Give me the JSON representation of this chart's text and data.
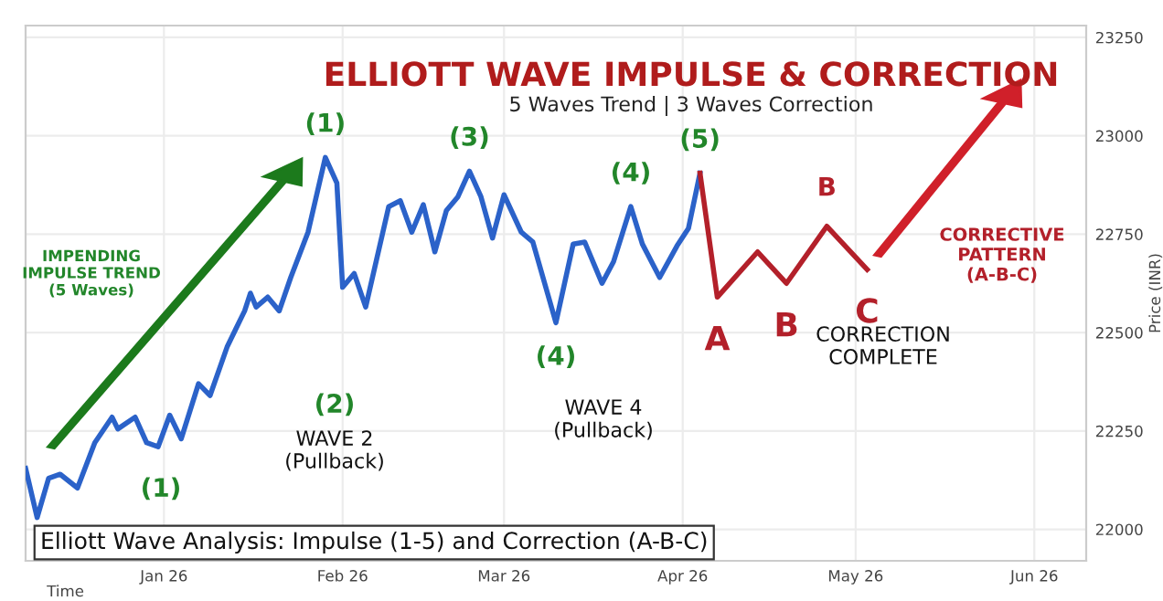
{
  "chart_data": {
    "type": "line",
    "title": "ELLIOTT WAVE IMPULSE & CORRECTION",
    "subtitle": "5 Waves Trend | 3 Waves Correction",
    "xlabel": "Time",
    "ylabel": "Price (INR)",
    "series": [
      {
        "color": "#2b62c9",
        "x": [
          "2025-12-08",
          "2025-12-10",
          "2025-12-12",
          "2025-12-14",
          "2025-12-17",
          "2025-12-20",
          "2025-12-23",
          "2025-12-24",
          "2025-12-27",
          "2025-12-29",
          "2025-12-31",
          "2026-01-02",
          "2026-01-04",
          "2026-01-07",
          "2026-01-09",
          "2026-01-12",
          "2026-01-13",
          "2026-01-15",
          "2026-01-16",
          "2026-01-17",
          "2026-01-19",
          "2026-01-21",
          "2026-01-23",
          "2026-01-26",
          "2026-01-29",
          "2026-01-31",
          "2026-02-01",
          "2026-02-03",
          "2026-02-05",
          "2026-02-09",
          "2026-02-11",
          "2026-02-13",
          "2026-02-15",
          "2026-02-17",
          "2026-02-19",
          "2026-02-21",
          "2026-02-23",
          "2026-02-25",
          "2026-02-27",
          "2026-03-01",
          "2026-03-04",
          "2026-03-06",
          "2026-03-10",
          "2026-03-13",
          "2026-03-15",
          "2026-03-17",
          "2026-03-18",
          "2026-03-20",
          "2026-03-23",
          "2026-03-25",
          "2026-03-28",
          "2026-03-31",
          "2026-04-02",
          "2026-04-04"
        ],
        "values": [
          22155,
          22030,
          22130,
          22140,
          22105,
          22220,
          22285,
          22255,
          22285,
          22220,
          22210,
          22290,
          22230,
          22370,
          22340,
          22465,
          22495,
          22555,
          22600,
          22565,
          22590,
          22555,
          22640,
          22755,
          22945,
          22880,
          22615,
          22650,
          22565,
          22820,
          22835,
          22755,
          22825,
          22705,
          22810,
          22845,
          22910,
          22845,
          22740,
          22850,
          22755,
          22730,
          22525,
          22725,
          22730,
          22660,
          22625,
          22680,
          22820,
          22725,
          22640,
          22720,
          22765,
          22905
        ]
      },
      {
        "color": "#b3202a",
        "x": [
          "2026-04-04",
          "2026-04-07",
          "2026-04-14",
          "2026-04-19",
          "2026-04-26",
          "2026-05-03"
        ],
        "values": [
          22905,
          22590,
          22705,
          22625,
          22770,
          22660
        ]
      }
    ],
    "annotations": [
      {
        "text": "(1)",
        "x": "2026-01-29",
        "y": 22945
      },
      {
        "text": "(3)",
        "x": "2026-02-23",
        "y": 22910
      },
      {
        "text": "(4)",
        "x": "2026-03-23",
        "y": 22820
      },
      {
        "text": "(5)",
        "x": "2026-04-04",
        "y": 22905
      },
      {
        "text": "(4)",
        "x": "2026-03-10",
        "y": 22525
      },
      {
        "text": "A",
        "x": "2026-04-07",
        "y": 22590
      },
      {
        "text": "B",
        "x": "2026-04-19",
        "y": 22625
      },
      {
        "text": "B",
        "x": "2026-04-26",
        "y": 22770
      },
      {
        "text": "C",
        "x": "2026-05-03",
        "y": 22660
      },
      "IMPENDING\nIMPULSE TREND\n(5 Waves)",
      "(1)",
      "(2)",
      "WAVE 2\n(Pullback)",
      "WAVE 4\n(Pullback)",
      "CORRECTION\nCOMPLETE",
      "CORRECTIVE\nPATTERN\n(A-B-C)",
      "Elliott Wave Analysis: Impulse (1-5) and Correction (A-B-C)"
    ],
    "xlim": [
      "2025-12-08",
      "2026-06-10"
    ],
    "xticks": [
      {
        "value": "2026-01-01",
        "label": "Jan 26"
      },
      {
        "value": "2026-02-01",
        "label": "Feb 26"
      },
      {
        "value": "2026-03-01",
        "label": "Mar 26"
      },
      {
        "value": "2026-04-01",
        "label": "Apr 26"
      },
      {
        "value": "2026-05-01",
        "label": "May 26"
      },
      {
        "value": "2026-06-01",
        "label": "Jun 26"
      }
    ],
    "ylim": [
      21920,
      23280
    ],
    "yticks": [
      22000,
      22250,
      22500,
      22750,
      23000,
      23250
    ],
    "grid": true,
    "marker": "none",
    "line_style": "solid"
  }
}
